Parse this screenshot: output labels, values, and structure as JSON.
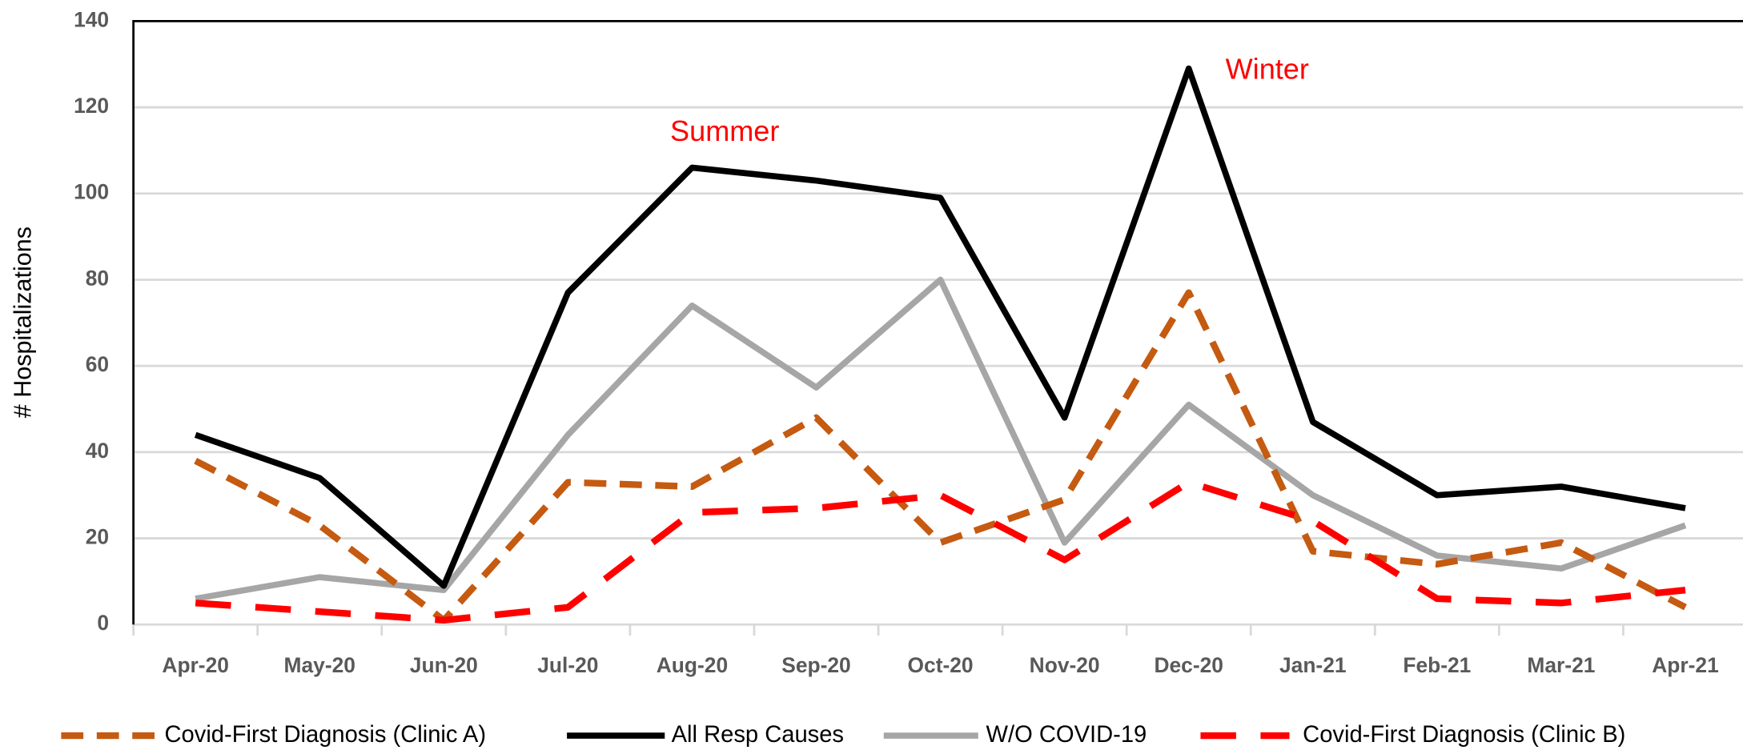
{
  "chart_data": {
    "type": "line",
    "ylabel": "# Hospitalizations",
    "annotations": [
      "Summer",
      "Winter"
    ],
    "categories": [
      "Apr-20",
      "May-20",
      "Jun-20",
      "Jul-20",
      "Aug-20",
      "Sep-20",
      "Oct-20",
      "Nov-20",
      "Dec-20",
      "Jan-21",
      "Feb-21",
      "Mar-21",
      "Apr-21"
    ],
    "series": [
      {
        "name": "Covid-First Diagnosis (Clinic A)",
        "color": "#c55a11",
        "dashed": true,
        "values": [
          38,
          23,
          1,
          33,
          32,
          48,
          19,
          29,
          77,
          17,
          14,
          19,
          4
        ]
      },
      {
        "name": "All Resp Causes",
        "color": "#000000",
        "dashed": false,
        "values": [
          44,
          34,
          9,
          77,
          106,
          103,
          99,
          48,
          129,
          47,
          30,
          32,
          27
        ]
      },
      {
        "name": "W/O COVID-19",
        "color": "#a6a6a6",
        "dashed": false,
        "values": [
          6,
          11,
          8,
          44,
          74,
          55,
          80,
          19,
          51,
          30,
          16,
          13,
          23
        ]
      },
      {
        "name": "Covid-First Diagnosis (Clinic B)",
        "color": "#ff0000",
        "dashed": true,
        "values": [
          5,
          3,
          1,
          4,
          26,
          27,
          30,
          15,
          33,
          24,
          6,
          5,
          8
        ]
      }
    ],
    "ylim": [
      0,
      140
    ],
    "yticks": [
      0,
      20,
      40,
      60,
      80,
      100,
      120,
      140
    ],
    "grid": true
  }
}
